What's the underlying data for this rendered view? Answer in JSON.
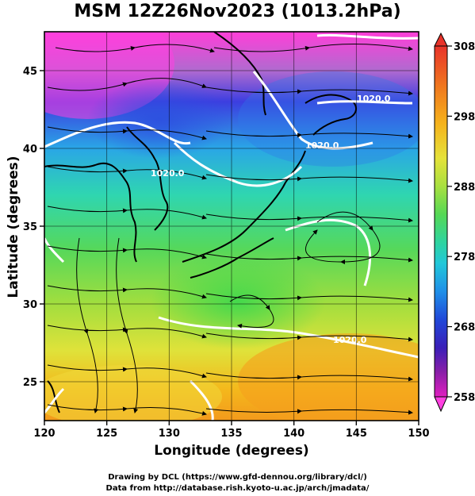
{
  "title": "MSM 12Z26Nov2023 (1013.2hPa)",
  "x_axis": {
    "label": "Longitude (degrees)",
    "range": [
      120,
      150
    ],
    "ticks": [
      "120",
      "125",
      "130",
      "135",
      "140",
      "145",
      "150"
    ]
  },
  "y_axis": {
    "label": "Latitude  (degrees)",
    "range": [
      22.5,
      47.5
    ],
    "ticks": [
      "25",
      "30",
      "35",
      "40",
      "45"
    ]
  },
  "colorbar": {
    "range": [
      258,
      308
    ],
    "labels": [
      "308",
      "298",
      "288",
      "278",
      "268",
      "258"
    ],
    "colors": [
      "#e8332a",
      "#f07a1e",
      "#f5b21c",
      "#e5e23a",
      "#a8e040",
      "#55d855",
      "#2ed4a0",
      "#21c7d9",
      "#1f8fe8",
      "#2048d8",
      "#3a1fb8",
      "#8a1fa8",
      "#e01fc0",
      "#ff40e0"
    ]
  },
  "contours": [
    {
      "label": "1020.0"
    },
    {
      "label": "1020.0"
    },
    {
      "label": "1020.0"
    },
    {
      "label": "1020.0"
    }
  ],
  "credits": {
    "line1": "Drawing by DCL (https://www.gfd-dennou.org/library/dcl/)",
    "line2": "Data from http://database.rish.kyoto-u.ac.jp/arch/jmadata/"
  }
}
